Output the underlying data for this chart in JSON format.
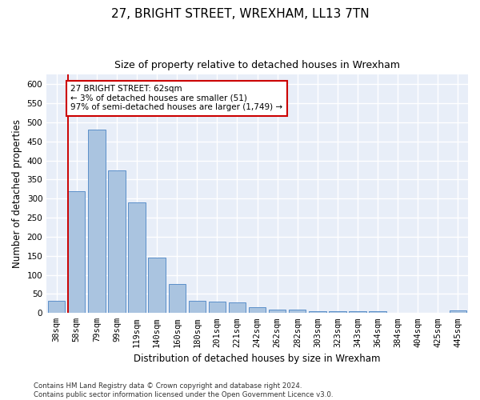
{
  "title": "27, BRIGHT STREET, WREXHAM, LL13 7TN",
  "subtitle": "Size of property relative to detached houses in Wrexham",
  "xlabel": "Distribution of detached houses by size in Wrexham",
  "ylabel": "Number of detached properties",
  "categories": [
    "38sqm",
    "58sqm",
    "79sqm",
    "99sqm",
    "119sqm",
    "140sqm",
    "160sqm",
    "180sqm",
    "201sqm",
    "221sqm",
    "242sqm",
    "262sqm",
    "282sqm",
    "303sqm",
    "323sqm",
    "343sqm",
    "364sqm",
    "384sqm",
    "404sqm",
    "425sqm",
    "445sqm"
  ],
  "values": [
    32,
    320,
    480,
    375,
    290,
    145,
    77,
    32,
    29,
    28,
    16,
    8,
    8,
    5,
    5,
    5,
    5,
    0,
    0,
    0,
    7
  ],
  "bar_color": "#aac4e0",
  "bar_edge_color": "#5b8fc9",
  "highlight_line_color": "#cc0000",
  "annotation_text": "27 BRIGHT STREET: 62sqm\n← 3% of detached houses are smaller (51)\n97% of semi-detached houses are larger (1,749) →",
  "annotation_box_color": "#ffffff",
  "annotation_box_edge_color": "#cc0000",
  "ylim": [
    0,
    625
  ],
  "yticks": [
    0,
    50,
    100,
    150,
    200,
    250,
    300,
    350,
    400,
    450,
    500,
    550,
    600
  ],
  "footer": "Contains HM Land Registry data © Crown copyright and database right 2024.\nContains public sector information licensed under the Open Government Licence v3.0.",
  "background_color": "#e8eef8",
  "grid_color": "#ffffff",
  "fig_background": "#ffffff",
  "title_fontsize": 11,
  "subtitle_fontsize": 9,
  "axis_label_fontsize": 8.5,
  "tick_fontsize": 7.5,
  "annotation_fontsize": 7.5,
  "footer_fontsize": 6.2
}
